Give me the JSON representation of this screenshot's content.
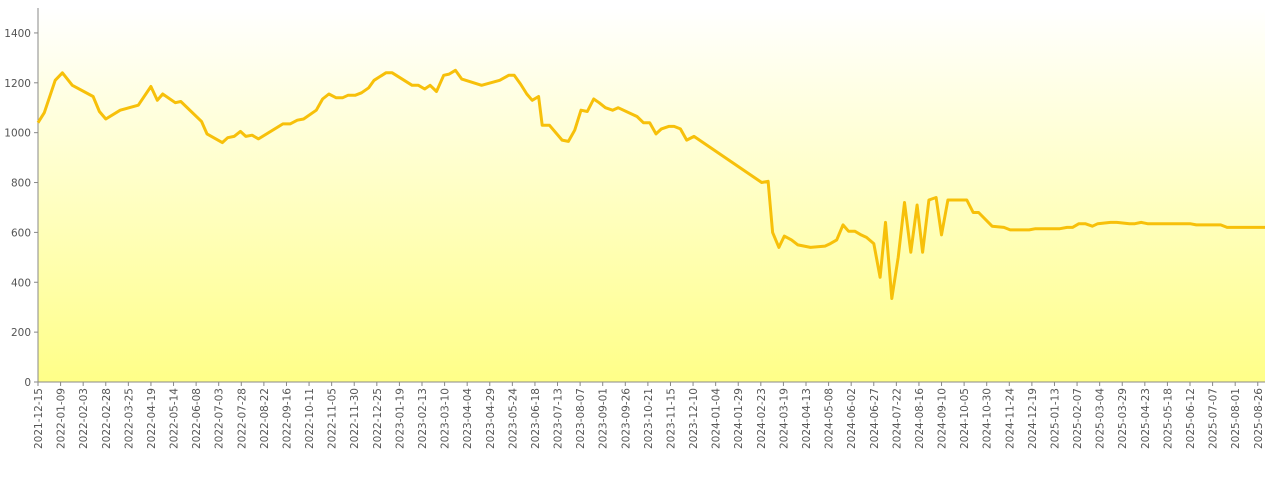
{
  "chart_data": {
    "type": "line",
    "color": "#f7c00a",
    "x": [
      "2021-12-15",
      "2021-12-22",
      "2022-01-03",
      "2022-01-11",
      "2022-01-22",
      "2022-02-14",
      "2022-02-21",
      "2022-02-28",
      "2022-03-16",
      "2022-04-05",
      "2022-04-19",
      "2022-04-26",
      "2022-05-02",
      "2022-05-16",
      "2022-05-22",
      "2022-06-14",
      "2022-06-20",
      "2022-07-07",
      "2022-07-13",
      "2022-07-20",
      "2022-07-27",
      "2022-08-02",
      "2022-08-09",
      "2022-08-16",
      "2022-09-12",
      "2022-09-20",
      "2022-09-28",
      "2022-10-05",
      "2022-10-19",
      "2022-10-26",
      "2022-11-02",
      "2022-11-10",
      "2022-11-17",
      "2022-11-23",
      "2022-12-01",
      "2022-12-08",
      "2022-12-16",
      "2022-12-22",
      "2023-01-04",
      "2023-01-11",
      "2023-02-02",
      "2023-02-09",
      "2023-02-16",
      "2023-02-22",
      "2023-03-01",
      "2023-03-09",
      "2023-03-15",
      "2023-03-22",
      "2023-03-29",
      "2023-04-20",
      "2023-05-10",
      "2023-05-20",
      "2023-05-26",
      "2023-06-02",
      "2023-06-09",
      "2023-06-15",
      "2023-06-22",
      "2023-06-26",
      "2023-07-04",
      "2023-07-18",
      "2023-07-25",
      "2023-08-01",
      "2023-08-08",
      "2023-08-15",
      "2023-08-22",
      "2023-08-28",
      "2023-09-04",
      "2023-09-12",
      "2023-09-18",
      "2023-10-09",
      "2023-10-16",
      "2023-10-23",
      "2023-10-30",
      "2023-11-05",
      "2023-11-13",
      "2023-11-19",
      "2023-11-26",
      "2023-12-03",
      "2023-12-11",
      "2024-02-24",
      "2024-03-02",
      "2024-03-07",
      "2024-03-14",
      "2024-03-20",
      "2024-03-28",
      "2024-04-04",
      "2024-04-18",
      "2024-05-04",
      "2024-05-10",
      "2024-05-17",
      "2024-05-24",
      "2024-05-30",
      "2024-06-06",
      "2024-06-13",
      "2024-06-19",
      "2024-06-27",
      "2024-07-04",
      "2024-07-10",
      "2024-07-17",
      "2024-07-24",
      "2024-07-31",
      "2024-08-07",
      "2024-08-14",
      "2024-08-20",
      "2024-08-27",
      "2024-09-04",
      "2024-09-10",
      "2024-09-17",
      "2024-10-08",
      "2024-10-15",
      "2024-10-21",
      "2024-11-05",
      "2024-11-18",
      "2024-11-25",
      "2024-12-16",
      "2024-12-23",
      "2025-01-19",
      "2025-01-27",
      "2025-02-02",
      "2025-02-09",
      "2025-02-16",
      "2025-02-24",
      "2025-03-02",
      "2025-03-16",
      "2025-03-23",
      "2025-04-06",
      "2025-04-12",
      "2025-04-19",
      "2025-04-26",
      "2025-06-12",
      "2025-06-19",
      "2025-07-16",
      "2025-07-23",
      "2025-09-03"
    ],
    "values": [
      1040,
      1080,
      1210,
      1240,
      1190,
      1145,
      1085,
      1055,
      1090,
      1110,
      1185,
      1130,
      1155,
      1120,
      1125,
      1045,
      995,
      960,
      980,
      985,
      1005,
      985,
      990,
      975,
      1035,
      1035,
      1050,
      1055,
      1090,
      1135,
      1155,
      1140,
      1140,
      1150,
      1150,
      1160,
      1180,
      1210,
      1240,
      1240,
      1190,
      1190,
      1175,
      1190,
      1165,
      1230,
      1235,
      1250,
      1215,
      1190,
      1210,
      1230,
      1230,
      1195,
      1155,
      1130,
      1145,
      1030,
      1030,
      970,
      965,
      1010,
      1090,
      1085,
      1135,
      1120,
      1100,
      1090,
      1100,
      1065,
      1040,
      1040,
      995,
      1015,
      1025,
      1025,
      1015,
      970,
      985,
      800,
      805,
      600,
      540,
      585,
      570,
      550,
      540,
      545,
      555,
      570,
      630,
      605,
      605,
      590,
      580,
      555,
      420,
      640,
      335,
      500,
      720,
      520,
      710,
      520,
      730,
      740,
      590,
      730,
      730,
      680,
      680,
      625,
      620,
      610,
      610,
      615,
      615,
      620,
      620,
      635,
      635,
      625,
      635,
      640,
      640,
      635,
      635,
      640,
      635,
      635,
      630,
      630,
      620,
      620
    ],
    "xlim": [
      "2021-12-15",
      "2025-09-03"
    ],
    "xticks": [
      "2021-12-15",
      "2022-01-09",
      "2022-02-03",
      "2022-02-28",
      "2022-03-25",
      "2022-04-19",
      "2022-05-14",
      "2022-06-08",
      "2022-07-03",
      "2022-07-28",
      "2022-08-22",
      "2022-09-16",
      "2022-10-11",
      "2022-11-05",
      "2022-11-30",
      "2022-12-25",
      "2023-01-19",
      "2023-02-13",
      "2023-03-10",
      "2023-04-04",
      "2023-04-29",
      "2023-05-24",
      "2023-06-18",
      "2023-07-13",
      "2023-08-07",
      "2023-09-01",
      "2023-09-26",
      "2023-10-21",
      "2023-11-15",
      "2023-12-10",
      "2024-01-04",
      "2024-01-29",
      "2024-02-23",
      "2024-03-19",
      "2024-04-13",
      "2024-05-08",
      "2024-06-02",
      "2024-06-27",
      "2024-07-22",
      "2024-08-16",
      "2024-09-10",
      "2024-10-05",
      "2024-10-30",
      "2024-11-24",
      "2024-12-19",
      "2025-01-13",
      "2025-02-07",
      "2025-03-04",
      "2025-03-29",
      "2025-04-23",
      "2025-05-18",
      "2025-06-12",
      "2025-07-07",
      "2025-08-01",
      "2025-08-26"
    ],
    "ylim": [
      0,
      1500
    ],
    "yticks": [
      0,
      200,
      400,
      600,
      800,
      1000,
      1200,
      1400
    ]
  }
}
